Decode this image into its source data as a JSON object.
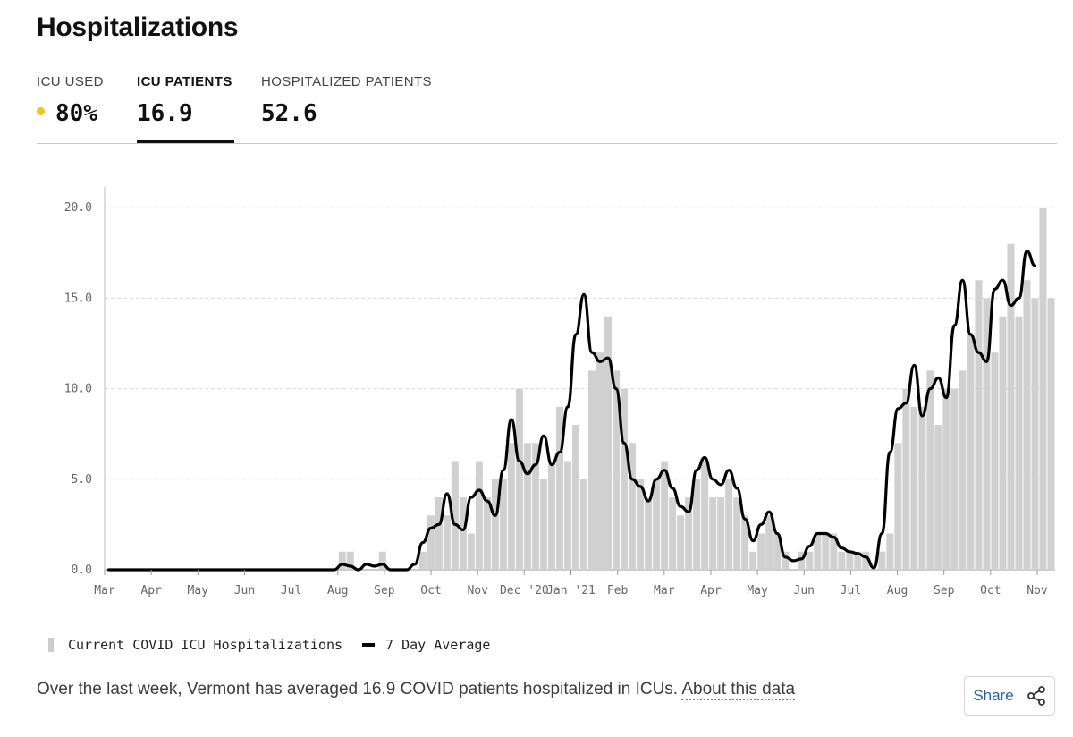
{
  "header": {
    "title": "Hospitalizations"
  },
  "tabs": [
    {
      "label": "ICU USED",
      "value": "80%",
      "indicator_color": "#f5c518"
    },
    {
      "label": "ICU PATIENTS",
      "value": "16.9",
      "active": true
    },
    {
      "label": "HOSPITALIZED PATIENTS",
      "value": "52.6"
    }
  ],
  "legend": {
    "bars_label": "Current COVID ICU Hospitalizations",
    "line_label": "7 Day Average"
  },
  "caption": {
    "text": "Over the last week, Vermont has averaged 16.9 COVID patients hospitalized in ICUs.",
    "link_text": "About this data"
  },
  "share": {
    "label": "Share",
    "icon": "share-icon"
  },
  "colors": {
    "bars": "#d0d0d0",
    "line": "#000000",
    "grid": "#d9d9d9",
    "link": "#1a5fd1"
  },
  "chart_data": {
    "type": "bar",
    "title": "",
    "xlabel": "",
    "ylabel": "",
    "ylim": [
      0,
      21
    ],
    "yticks": [
      0,
      5,
      10,
      15,
      20
    ],
    "ytick_labels": [
      "0.0",
      "5.0",
      "10.0",
      "15.0",
      "20.0"
    ],
    "x_month_labels": [
      "Mar",
      "Apr",
      "May",
      "Jun",
      "Jul",
      "Aug",
      "Sep",
      "Oct",
      "Nov",
      "Dec '20",
      "Jan '21",
      "Feb",
      "Mar",
      "Apr",
      "May",
      "Jun",
      "Jul",
      "Aug",
      "Sep",
      "Oct",
      "Nov"
    ],
    "series": [
      {
        "name": "Current COVID ICU Hospitalizations",
        "kind": "bar",
        "approximate_weekly_values": [
          0,
          0,
          0,
          0,
          0,
          0,
          0,
          0,
          0,
          0,
          0,
          0,
          0,
          0,
          0,
          0,
          0,
          0,
          0,
          0,
          0,
          0,
          0,
          0,
          0,
          0,
          0,
          0,
          0,
          1,
          1,
          0,
          0,
          0,
          1,
          0,
          0,
          0,
          0,
          1,
          3,
          4,
          3,
          6,
          4,
          2,
          6,
          4,
          5,
          5,
          7,
          10,
          7,
          7,
          5,
          6,
          9,
          6,
          8,
          5,
          11,
          12,
          14,
          11,
          10,
          7,
          5,
          4,
          5,
          6,
          4,
          3,
          4,
          5,
          6,
          4,
          4,
          5,
          4,
          3,
          1,
          2,
          3,
          2,
          1,
          0,
          1,
          1,
          2,
          2,
          2,
          1,
          1,
          1,
          1,
          0,
          1,
          2,
          7,
          10,
          9,
          9,
          11,
          8,
          10,
          10,
          11,
          13,
          16,
          15,
          12,
          14,
          18,
          14,
          16,
          15,
          20,
          15
        ],
        "note": "daily bars; values read approximately from gridlines, sampled roughly weekly"
      },
      {
        "name": "7 Day Average",
        "kind": "line",
        "approximate_weekly_values": [
          0,
          0,
          0,
          0,
          0,
          0,
          0,
          0,
          0,
          0,
          0,
          0,
          0,
          0,
          0,
          0,
          0,
          0,
          0,
          0,
          0,
          0,
          0,
          0,
          0,
          0,
          0,
          0,
          0,
          0.3,
          0.2,
          0,
          0.3,
          0.2,
          0.3,
          0,
          0,
          0,
          0.3,
          1.5,
          2.3,
          2.5,
          4.2,
          2.5,
          2.2,
          4,
          4.4,
          3.8,
          3,
          5.5,
          8.3,
          6,
          5.3,
          5.8,
          7.4,
          5.8,
          6.5,
          9,
          13,
          15.2,
          12,
          11.5,
          11.7,
          10,
          7,
          5,
          4.6,
          3.8,
          5,
          5.5,
          4.5,
          3.5,
          3.2,
          5.5,
          6.2,
          5,
          4.7,
          5.5,
          4.5,
          2.8,
          1.6,
          2.5,
          3.2,
          2,
          0.7,
          0.5,
          0.6,
          1.3,
          2,
          2,
          1.8,
          1.2,
          1,
          0.9,
          0.7,
          0.1,
          2,
          6.5,
          8.9,
          9.2,
          11.3,
          8.5,
          10,
          10.6,
          9.5,
          13.5,
          16,
          13,
          12,
          11.5,
          15.5,
          16,
          14.6,
          15,
          17.6,
          16.8
        ]
      }
    ],
    "legend_position": "bottom-left"
  }
}
